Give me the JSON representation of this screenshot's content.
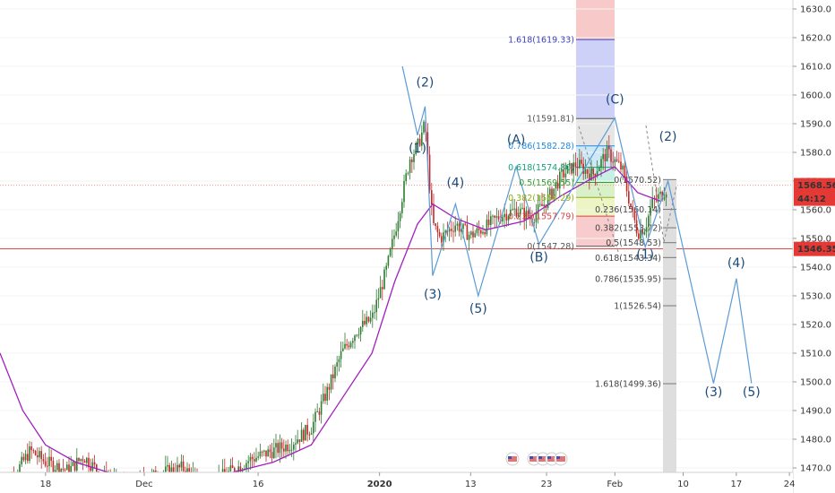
{
  "chart_data": {
    "type": "candlestick",
    "y_axis": {
      "range": [
        1467,
        1637
      ],
      "ticks": [
        1470,
        1480,
        1490,
        1500,
        1510,
        1520,
        1530,
        1540,
        1550,
        1560,
        1570,
        1580,
        1590,
        1600,
        1610,
        1620,
        1630
      ]
    },
    "x_axis": {
      "range": [
        "2019-11-12",
        "2020-03-01"
      ],
      "ticks": [
        {
          "date": "2019-11-18",
          "label": "18"
        },
        {
          "date": "2019-12-01",
          "label": "Dec"
        },
        {
          "date": "2019-12-16",
          "label": "16"
        },
        {
          "date": "2020-01-01",
          "label": "2020"
        },
        {
          "date": "2020-01-13",
          "label": "13"
        },
        {
          "date": "2020-01-23",
          "label": "23"
        },
        {
          "date": "2020-02-01",
          "label": "Feb"
        },
        {
          "date": "2020-02-10",
          "label": "10"
        },
        {
          "date": "2020-02-17",
          "label": "17"
        },
        {
          "date": "2020-02-24",
          "label": "24"
        }
      ]
    },
    "price_tags": [
      {
        "label": "1568.56",
        "value": 1568.56,
        "color": "#e53935"
      },
      {
        "label": "44:12",
        "value": 1565.4,
        "color": "#e53935"
      },
      {
        "label": "1546.35",
        "value": 1546.35,
        "color": "#e53935"
      }
    ],
    "horizontal_lines": [
      {
        "value": 1568.56,
        "style": "dotted",
        "color": "#ef9a9a"
      },
      {
        "value": 1546.35,
        "style": "solid",
        "color": "#d84343"
      }
    ],
    "fib_extension": {
      "zones": [
        {
          "from": 1619.33,
          "to": 1637,
          "color": "#f8c9c9"
        },
        {
          "from": 1591.81,
          "to": 1619.33,
          "color": "#cdd1f7"
        },
        {
          "from": 1582.28,
          "to": 1591.81,
          "color": "#e6e6e6"
        },
        {
          "from": 1574.8,
          "to": 1582.28,
          "color": "#cde8f6"
        },
        {
          "from": 1569.55,
          "to": 1574.8,
          "color": "#c8efe6"
        },
        {
          "from": 1564.29,
          "to": 1569.55,
          "color": "#d8f1c8"
        },
        {
          "from": 1557.79,
          "to": 1564.29,
          "color": "#eef5c5"
        },
        {
          "from": 1547.28,
          "to": 1557.79,
          "color": "#f8cccc"
        }
      ],
      "levels": [
        {
          "label": "1.618(1619.33)",
          "value": 1619.33,
          "color": "#3f3fbf"
        },
        {
          "label": "1(1591.81)",
          "value": 1591.81,
          "color": "#555555"
        },
        {
          "label": "0.786(1582.28)",
          "value": 1582.28,
          "color": "#1e88e5"
        },
        {
          "label": "0.618(1574.80)",
          "value": 1574.8,
          "color": "#11a37b"
        },
        {
          "label": "0.5(1569.55)",
          "value": 1569.55,
          "color": "#2e9e2e"
        },
        {
          "label": "0.382(1564.29)",
          "value": 1564.29,
          "color": "#8fae18"
        },
        {
          "label": "0.236(1557.79)",
          "value": 1557.79,
          "color": "#d84343"
        },
        {
          "label": "0(1547.28)",
          "value": 1547.28,
          "color": "#555555"
        }
      ]
    },
    "fib_retracement": {
      "levels": [
        {
          "label": "0(1570.52)",
          "value": 1570.52
        },
        {
          "label": "0.236(1560.14)",
          "value": 1560.14
        },
        {
          "label": "0.382(1553.72)",
          "value": 1553.72
        },
        {
          "label": "0.5(1548.53)",
          "value": 1548.53
        },
        {
          "label": "0.618(1543.34)",
          "value": 1543.34
        },
        {
          "label": "0.786(1535.95)",
          "value": 1535.95
        },
        {
          "label": "1(1526.54)",
          "value": 1526.54
        },
        {
          "label": "1.618(1499.36)",
          "value": 1499.36
        }
      ]
    },
    "wave_labels": [
      {
        "label": "(1)",
        "date": "2020-01-06",
        "value": 1580
      },
      {
        "label": "(2)",
        "date": "2020-01-07",
        "value": 1603
      },
      {
        "label": "(3)",
        "date": "2020-01-08",
        "value": 1529
      },
      {
        "label": "(4)",
        "date": "2020-01-11",
        "value": 1568
      },
      {
        "label": "(5)",
        "date": "2020-01-14",
        "value": 1524
      },
      {
        "label": "(A)",
        "date": "2020-01-19",
        "value": 1583
      },
      {
        "label": "(B)",
        "date": "2020-01-22",
        "value": 1542
      },
      {
        "label": "(C)",
        "date": "2020-02-01",
        "value": 1597
      },
      {
        "label": "(1)",
        "date": "2020-02-05",
        "value": 1543
      },
      {
        "label": "(2)",
        "date": "2020-02-08",
        "value": 1584
      },
      {
        "label": "(4)",
        "date": "2020-02-17",
        "value": 1540
      },
      {
        "label": "(3)",
        "date": "2020-02-14",
        "value": 1495
      },
      {
        "label": "(5)",
        "date": "2020-02-19",
        "value": 1495
      }
    ],
    "elliott_path": [
      {
        "date": "2020-01-04",
        "value": 1610
      },
      {
        "date": "2020-01-06",
        "value": 1586
      },
      {
        "date": "2020-01-07",
        "value": 1596
      },
      {
        "date": "2020-01-08",
        "value": 1537
      },
      {
        "date": "2020-01-11",
        "value": 1562
      },
      {
        "date": "2020-01-14",
        "value": 1530
      },
      {
        "date": "2020-01-19",
        "value": 1575
      },
      {
        "date": "2020-01-22",
        "value": 1548
      },
      {
        "date": "2020-02-01",
        "value": 1592
      },
      {
        "date": "2020-02-05",
        "value": 1547
      },
      {
        "date": "2020-02-08",
        "value": 1570
      },
      {
        "date": "2020-02-14",
        "value": 1499.5
      },
      {
        "date": "2020-02-17",
        "value": 1536
      },
      {
        "date": "2020-02-19",
        "value": 1499.5
      }
    ],
    "candle_keyframes": [
      {
        "date": "2019-11-12",
        "value": 1461
      },
      {
        "date": "2019-11-14",
        "value": 1468
      },
      {
        "date": "2019-11-16",
        "value": 1476
      },
      {
        "date": "2019-11-18",
        "value": 1472
      },
      {
        "date": "2019-11-21",
        "value": 1469
      },
      {
        "date": "2019-11-23",
        "value": 1474
      },
      {
        "date": "2019-11-26",
        "value": 1466
      },
      {
        "date": "2019-11-29",
        "value": 1463
      },
      {
        "date": "2019-12-03",
        "value": 1468
      },
      {
        "date": "2019-12-06",
        "value": 1470
      },
      {
        "date": "2019-12-09",
        "value": 1464
      },
      {
        "date": "2019-12-12",
        "value": 1468
      },
      {
        "date": "2019-12-15",
        "value": 1473
      },
      {
        "date": "2019-12-18",
        "value": 1476
      },
      {
        "date": "2019-12-20",
        "value": 1478
      },
      {
        "date": "2019-12-23",
        "value": 1484
      },
      {
        "date": "2019-12-25",
        "value": 1496
      },
      {
        "date": "2019-12-27",
        "value": 1510
      },
      {
        "date": "2019-12-29",
        "value": 1518
      },
      {
        "date": "2019-12-31",
        "value": 1522
      },
      {
        "date": "2020-01-02",
        "value": 1540
      },
      {
        "date": "2020-01-03",
        "value": 1552
      },
      {
        "date": "2020-01-05",
        "value": 1578
      },
      {
        "date": "2020-01-06",
        "value": 1582
      },
      {
        "date": "2020-01-07",
        "value": 1590
      },
      {
        "date": "2020-01-08",
        "value": 1555
      },
      {
        "date": "2020-01-09",
        "value": 1550
      },
      {
        "date": "2020-01-11",
        "value": 1555
      },
      {
        "date": "2020-01-13",
        "value": 1551
      },
      {
        "date": "2020-01-15",
        "value": 1554
      },
      {
        "date": "2020-01-17",
        "value": 1558
      },
      {
        "date": "2020-01-19",
        "value": 1560
      },
      {
        "date": "2020-01-21",
        "value": 1557
      },
      {
        "date": "2020-01-23",
        "value": 1563
      },
      {
        "date": "2020-01-25",
        "value": 1572
      },
      {
        "date": "2020-01-27",
        "value": 1576
      },
      {
        "date": "2020-01-29",
        "value": 1572
      },
      {
        "date": "2020-01-31",
        "value": 1580
      },
      {
        "date": "2020-02-02",
        "value": 1574
      },
      {
        "date": "2020-02-03",
        "value": 1562
      },
      {
        "date": "2020-02-04",
        "value": 1552
      },
      {
        "date": "2020-02-05",
        "value": 1554
      },
      {
        "date": "2020-02-06",
        "value": 1563
      },
      {
        "date": "2020-02-07",
        "value": 1565
      },
      {
        "date": "2020-02-08",
        "value": 1568
      }
    ],
    "moving_average": [
      {
        "date": "2019-11-12",
        "value": 1510
      },
      {
        "date": "2019-11-15",
        "value": 1490
      },
      {
        "date": "2019-11-18",
        "value": 1478
      },
      {
        "date": "2019-11-22",
        "value": 1472
      },
      {
        "date": "2019-11-28",
        "value": 1467
      },
      {
        "date": "2019-12-05",
        "value": 1466
      },
      {
        "date": "2019-12-12",
        "value": 1468
      },
      {
        "date": "2019-12-18",
        "value": 1472
      },
      {
        "date": "2019-12-23",
        "value": 1478
      },
      {
        "date": "2019-12-27",
        "value": 1494
      },
      {
        "date": "2019-12-31",
        "value": 1510
      },
      {
        "date": "2020-01-03",
        "value": 1535
      },
      {
        "date": "2020-01-06",
        "value": 1555
      },
      {
        "date": "2020-01-08",
        "value": 1562
      },
      {
        "date": "2020-01-11",
        "value": 1557
      },
      {
        "date": "2020-01-15",
        "value": 1553
      },
      {
        "date": "2020-01-20",
        "value": 1556
      },
      {
        "date": "2020-01-25",
        "value": 1565
      },
      {
        "date": "2020-01-29",
        "value": 1571
      },
      {
        "date": "2020-02-01",
        "value": 1575
      },
      {
        "date": "2020-02-04",
        "value": 1566
      },
      {
        "date": "2020-02-07",
        "value": 1563
      }
    ]
  }
}
